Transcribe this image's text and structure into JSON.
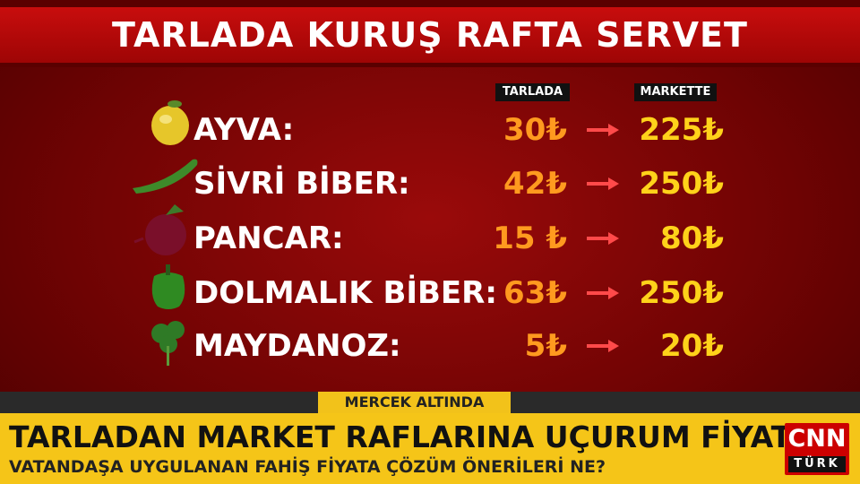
{
  "title": "TARLADA KURUŞ RAFTA SERVET",
  "table": {
    "headers": [
      "TARLADA",
      "MARKETTE"
    ],
    "rows": [
      [
        "AYVA:",
        "30₺",
        "225₺"
      ],
      [
        "SİVRİ BİBER:",
        "42₺",
        "250₺"
      ],
      [
        "PANCAR:",
        "15 ₺",
        "80₺"
      ],
      [
        "DOLMALIK BİBER:",
        "63₺",
        "250₺"
      ],
      [
        "MAYDANOZ:",
        "5₺",
        "20₺"
      ]
    ]
  },
  "ticker": {
    "tag": "MERCEK ALTINDA",
    "headline": "TARLADAN MARKET RAFLARINA UÇURUM FİYAT",
    "subline": "VATANDAŞA UYGULANAN FAHİŞ FİYATA ÇÖZÜM ÖNERİLERİ NE?"
  },
  "logo": {
    "brand": "CNN",
    "sub": "TÜRK"
  }
}
